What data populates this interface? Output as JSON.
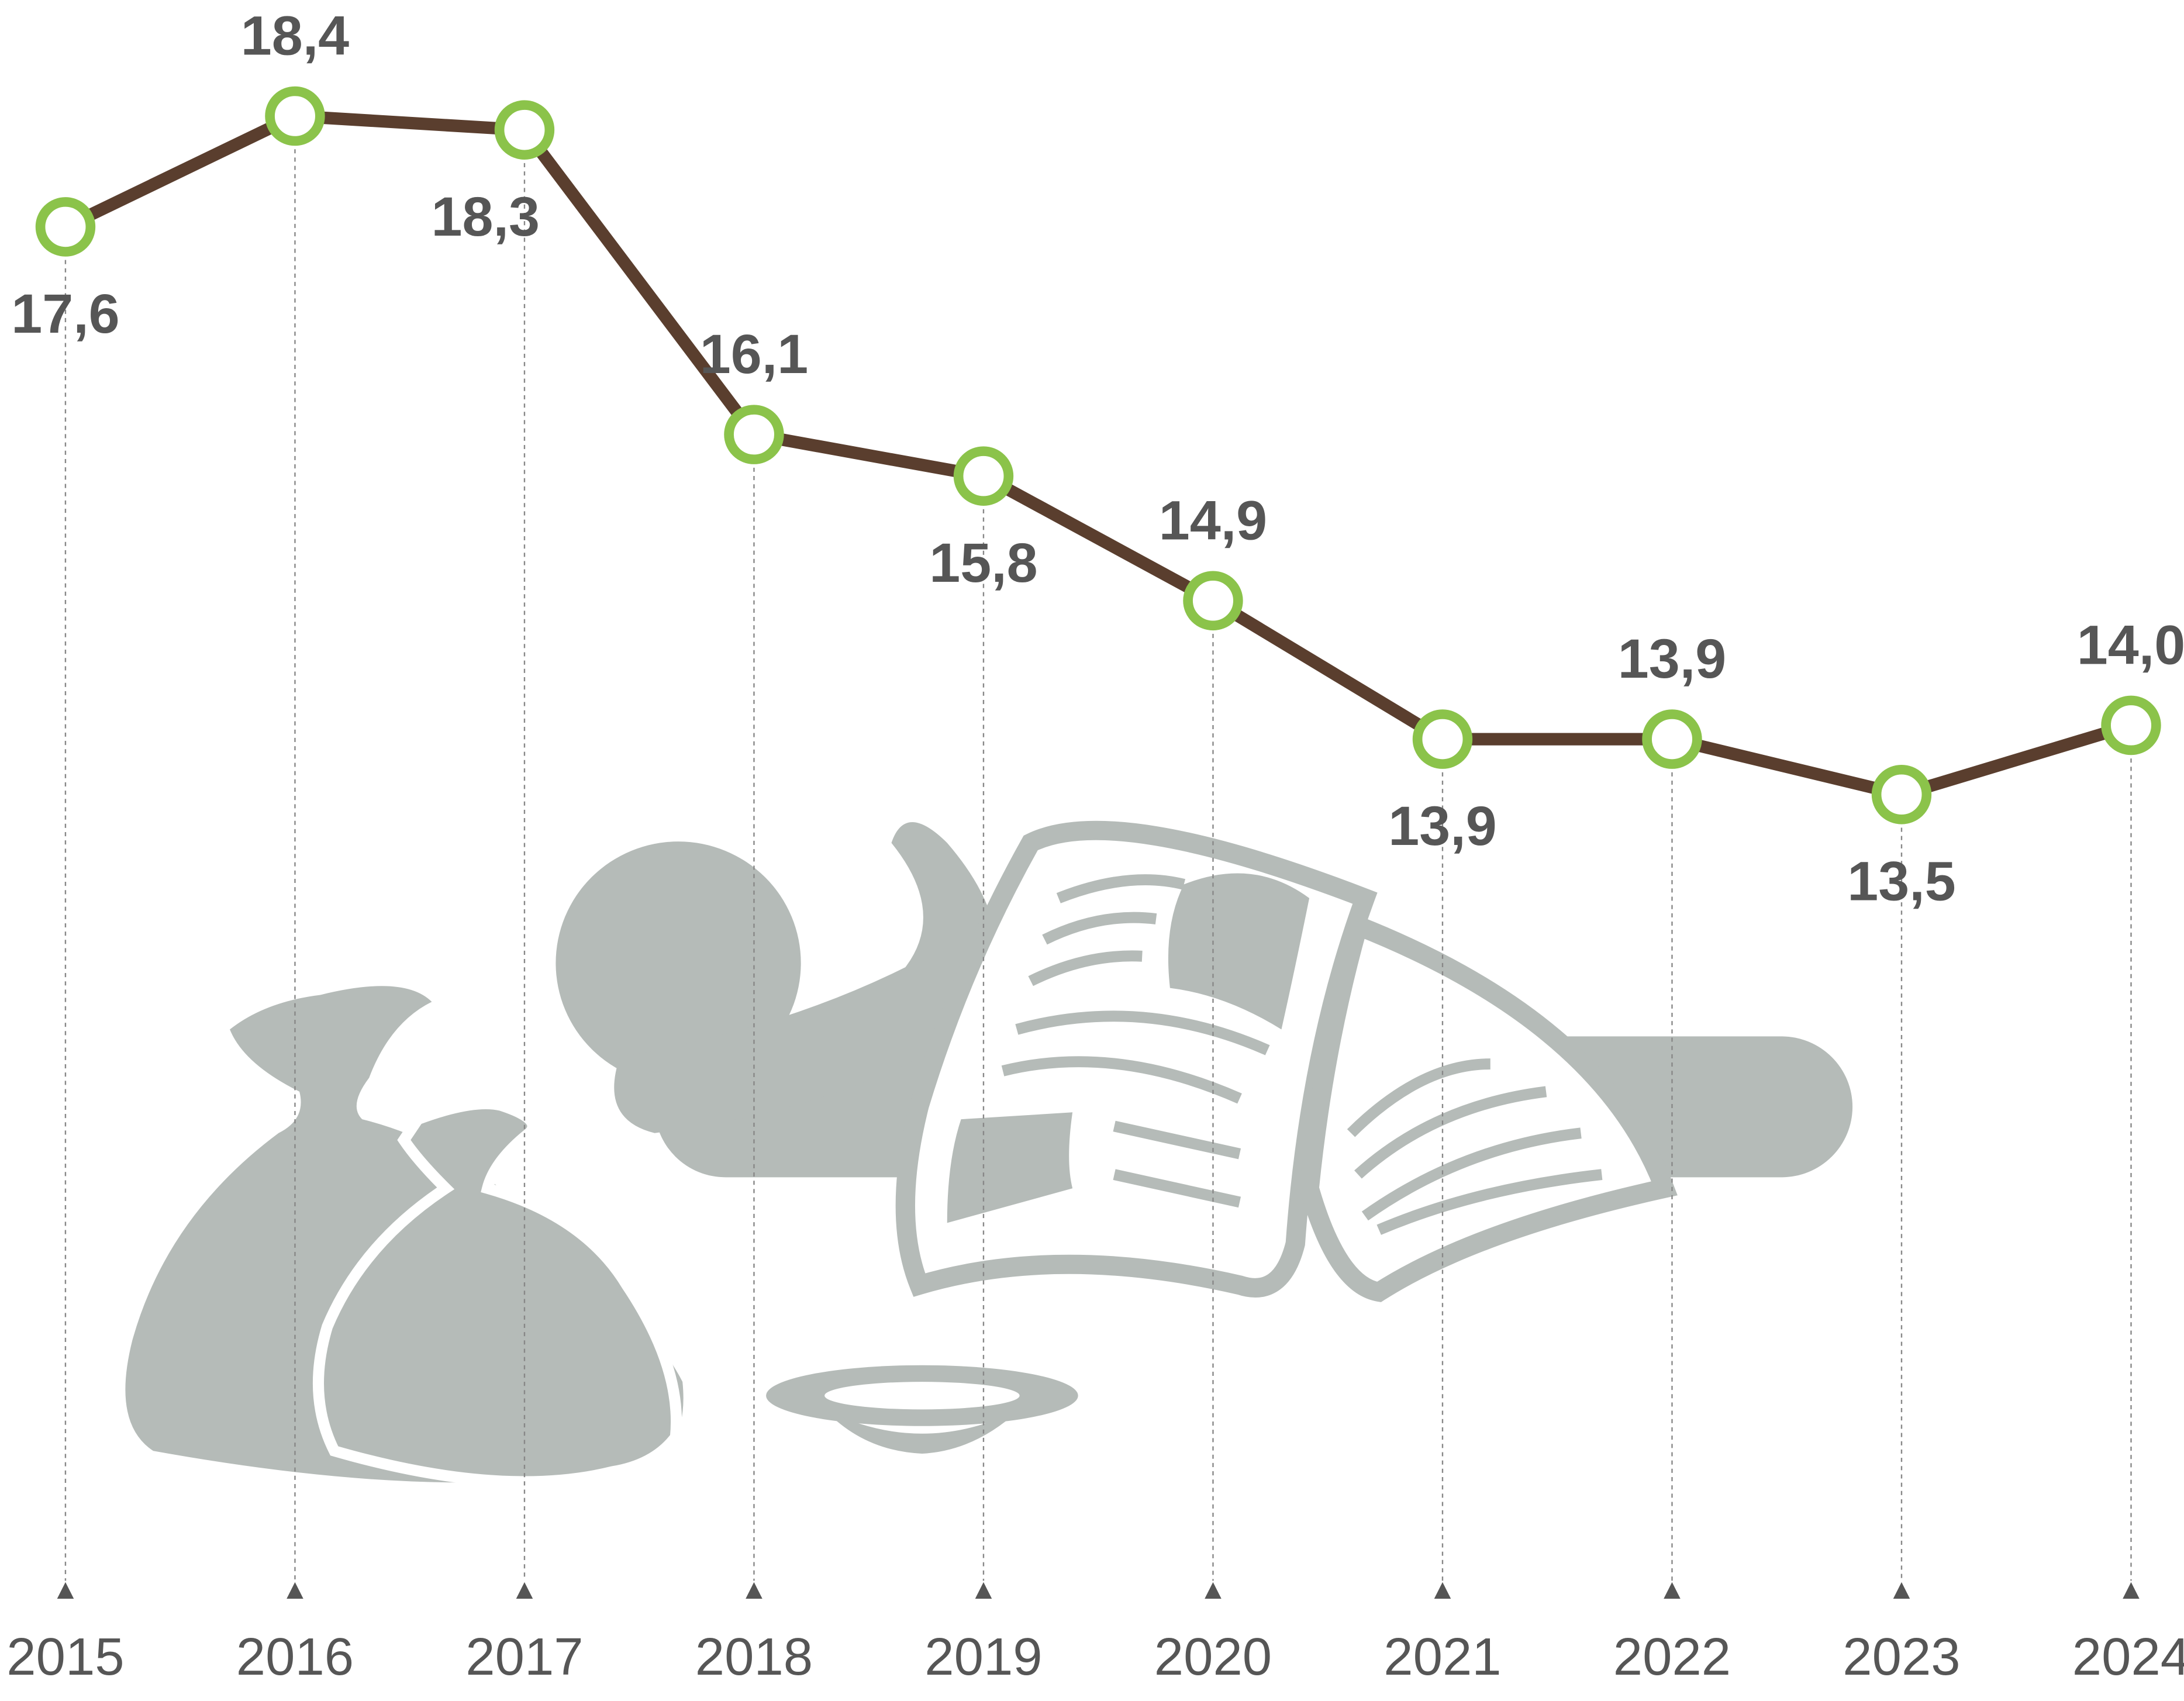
{
  "chart_data": {
    "type": "line",
    "categories": [
      "2015",
      "2016",
      "2017",
      "2018",
      "2019",
      "2020",
      "2021",
      "2022",
      "2023",
      "2024"
    ],
    "values": [
      17.6,
      18.4,
      18.3,
      16.1,
      15.8,
      14.9,
      13.9,
      13.9,
      13.5,
      14.0
    ],
    "value_labels": [
      "17,6",
      "18,4",
      "18,3",
      "16,1",
      "15,8",
      "14,9",
      "13,9",
      "13,9",
      "13,5",
      "14,0"
    ],
    "color": "#5a3e2e",
    "marker_color": "#8bc34a"
  }
}
